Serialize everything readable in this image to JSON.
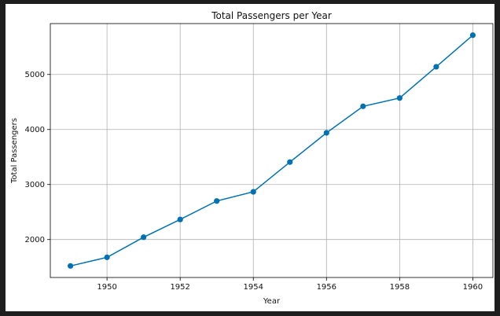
{
  "chart_data": {
    "type": "line",
    "title": "Total Passengers per Year",
    "xlabel": "Year",
    "ylabel": "Total Passengers",
    "x": [
      1949,
      1950,
      1951,
      1952,
      1953,
      1954,
      1955,
      1956,
      1957,
      1958,
      1959,
      1960
    ],
    "series": [
      {
        "name": "",
        "values": [
          1520,
          1676,
          2042,
          2364,
          2700,
          2867,
          3408,
          3939,
          4421,
          4572,
          5140,
          5714
        ],
        "color": "#0072b2",
        "marker": "circle"
      }
    ],
    "xlim": [
      1948.45,
      1960.55
    ],
    "ylim": [
      1310,
      5925
    ],
    "xticks": [
      1950,
      1952,
      1954,
      1956,
      1958,
      1960
    ],
    "yticks": [
      2000,
      3000,
      4000,
      5000
    ],
    "grid": true,
    "legend": "none"
  }
}
